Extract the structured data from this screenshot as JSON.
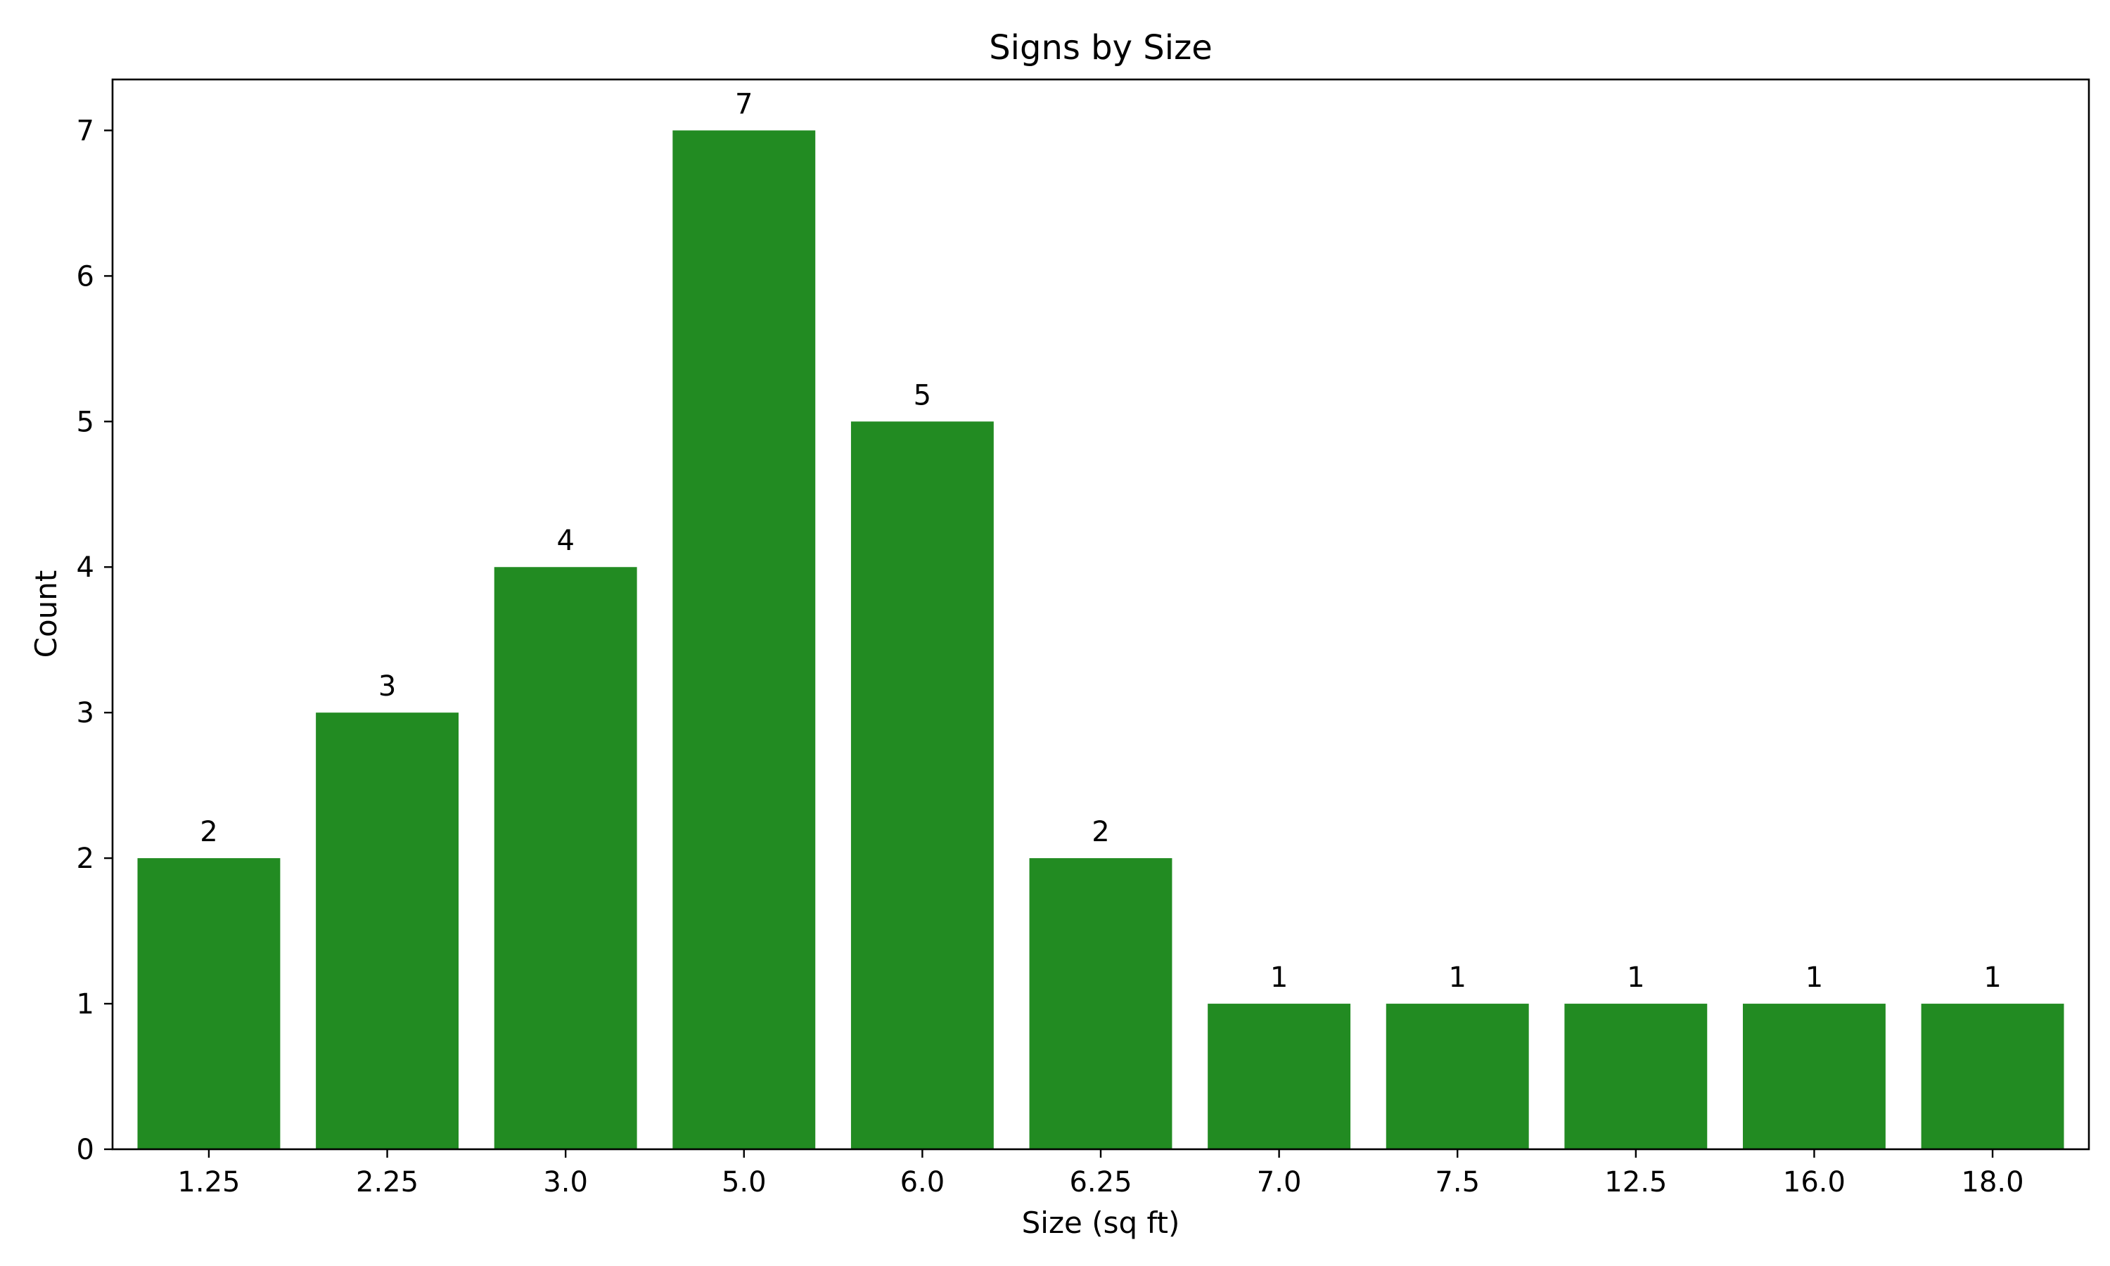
{
  "chart_data": {
    "type": "bar",
    "title": "Signs by Size",
    "xlabel": "Size (sq ft)",
    "ylabel": "Count",
    "categories": [
      "1.25",
      "2.25",
      "3.0",
      "5.0",
      "6.0",
      "6.25",
      "7.0",
      "7.5",
      "12.5",
      "16.0",
      "18.0"
    ],
    "values": [
      2,
      3,
      4,
      7,
      5,
      2,
      1,
      1,
      1,
      1,
      1
    ],
    "data_labels": [
      "2",
      "3",
      "4",
      "7",
      "5",
      "2",
      "1",
      "1",
      "1",
      "1",
      "1"
    ],
    "ylim": [
      0,
      7.35
    ],
    "yticks": [
      0,
      1,
      2,
      3,
      4,
      5,
      6,
      7
    ],
    "grid": false,
    "legend": "none",
    "colors": {
      "bar": "#228b22",
      "axis": "#000000",
      "background": "#ffffff"
    }
  }
}
